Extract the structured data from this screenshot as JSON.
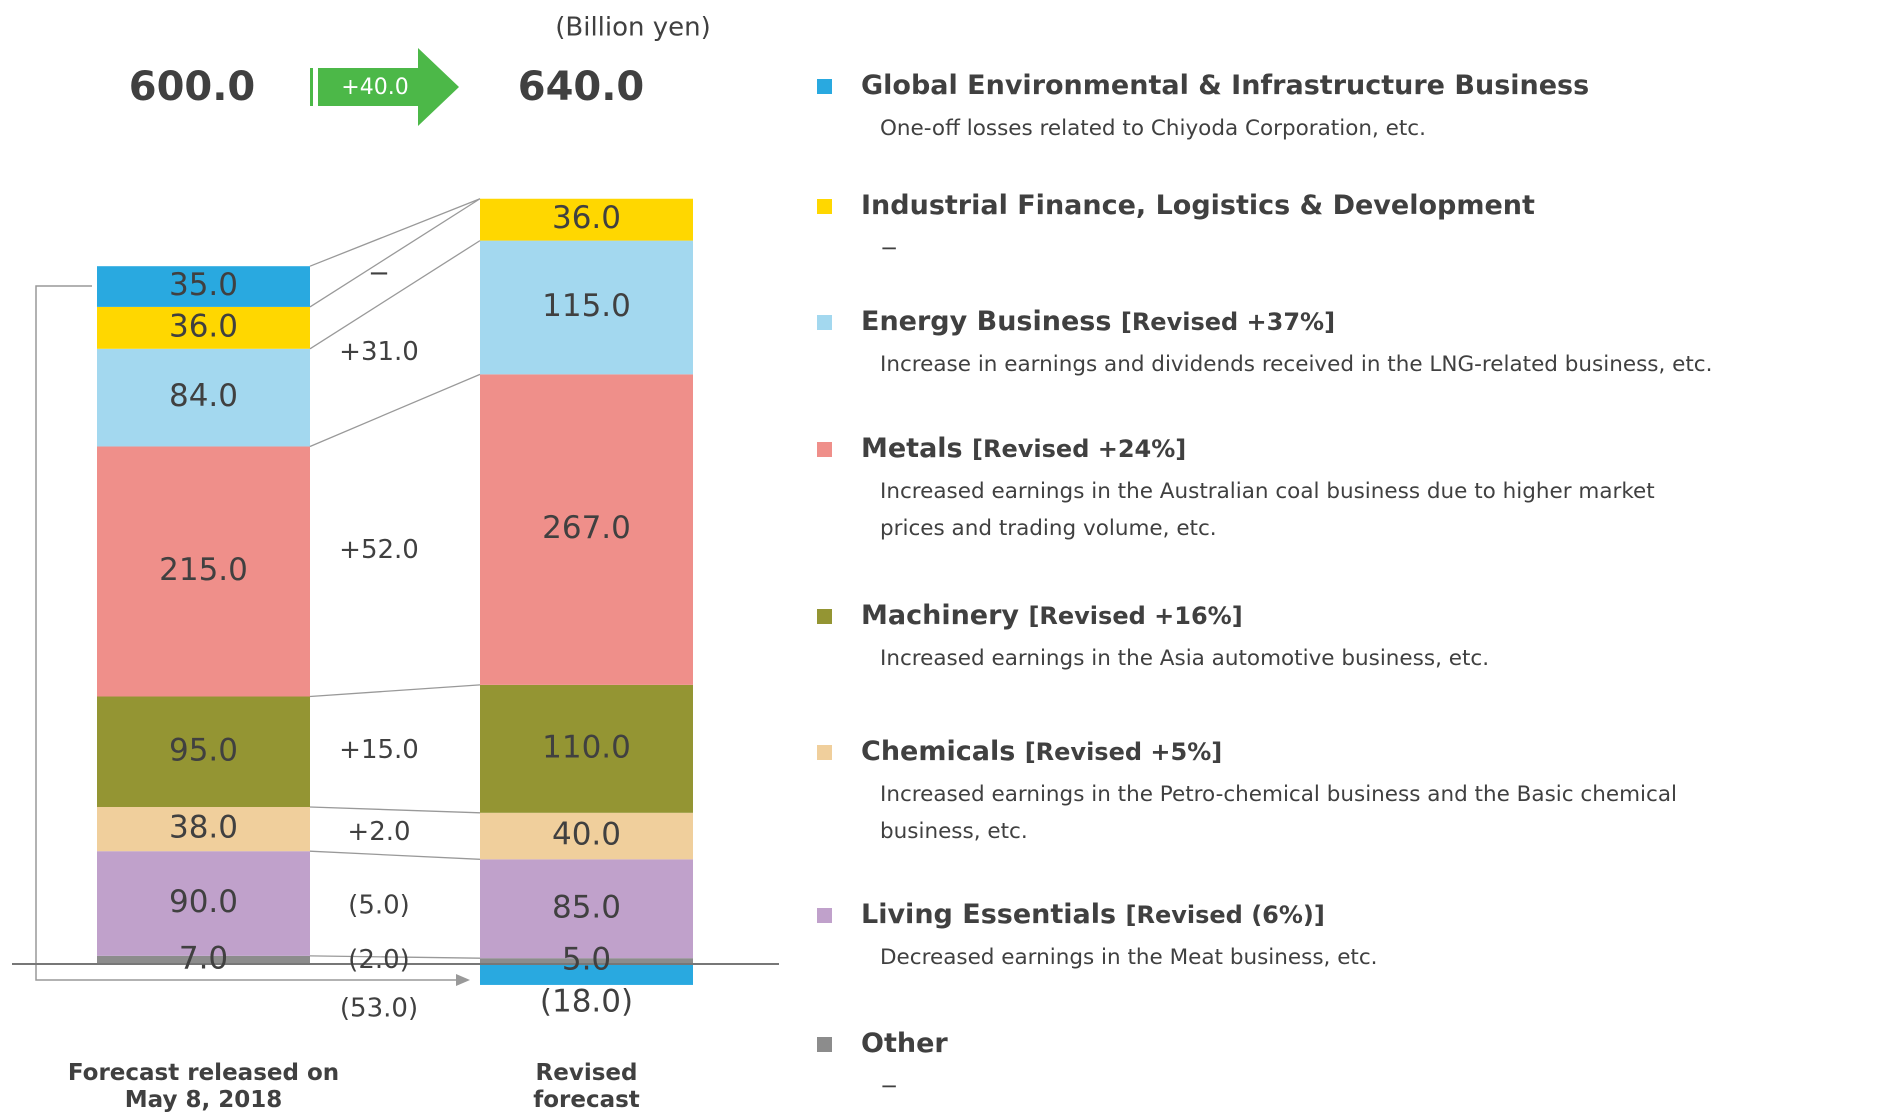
{
  "chart_data": {
    "type": "bar",
    "stacked": true,
    "unit_label": "(Billion yen)",
    "categories": [
      "Forecast released on May 8, 2018",
      "Revised forecast"
    ],
    "totals": [
      600.0,
      640.0
    ],
    "totals_labels": [
      "600.0",
      "640.0"
    ],
    "total_change": 40.0,
    "total_change_label": "+40.0",
    "series": [
      {
        "name": "Other",
        "color": "#8c8c8c",
        "values": [
          7.0,
          5.0
        ],
        "value_labels": [
          "7.0",
          "5.0"
        ],
        "change": -2.0,
        "change_label": "(2.0)",
        "note": "",
        "description": [
          "−"
        ]
      },
      {
        "name": "Living Essentials",
        "color": "#c0a1cb",
        "values": [
          90.0,
          85.0
        ],
        "value_labels": [
          "90.0",
          "85.0"
        ],
        "change": -5.0,
        "change_label": "(5.0)",
        "note": "[Revised (6%)]",
        "description": [
          "Decreased earnings in the Meat business, etc."
        ]
      },
      {
        "name": "Chemicals",
        "color": "#f0cf9c",
        "values": [
          38.0,
          40.0
        ],
        "value_labels": [
          "38.0",
          "40.0"
        ],
        "change": 2.0,
        "change_label": "+2.0",
        "note": "[Revised +5%]",
        "description": [
          "Increased earnings in the Petro-chemical business and the Basic chemical",
          "business, etc."
        ]
      },
      {
        "name": "Machinery",
        "color": "#949533",
        "values": [
          95.0,
          110.0
        ],
        "value_labels": [
          "95.0",
          "110.0"
        ],
        "change": 15.0,
        "change_label": "+15.0",
        "note": "[Revised +16%]",
        "description": [
          "Increased earnings in the Asia automotive business, etc."
        ]
      },
      {
        "name": "Metals",
        "color": "#ef8f8a",
        "values": [
          215.0,
          267.0
        ],
        "value_labels": [
          "215.0",
          "267.0"
        ],
        "change": 52.0,
        "change_label": "+52.0",
        "note": "[Revised +24%]",
        "description": [
          "Increased earnings in the Australian coal business due to higher market",
          "prices and trading volume, etc."
        ]
      },
      {
        "name": "Energy Business",
        "color": "#a3d8ef",
        "values": [
          84.0,
          115.0
        ],
        "value_labels": [
          "84.0",
          "115.0"
        ],
        "change": 31.0,
        "change_label": "+31.0",
        "note": "[Revised +37%]",
        "description": [
          "Increase in earnings and dividends received in the LNG-related business, etc."
        ]
      },
      {
        "name": "Industrial Finance, Logistics & Development",
        "color": "#ffd700",
        "values": [
          36.0,
          36.0
        ],
        "value_labels": [
          "36.0",
          "36.0"
        ],
        "change": 0,
        "change_label": "−",
        "note": "",
        "description": [
          "−"
        ]
      },
      {
        "name": "Global Environmental & Infrastructure Business",
        "color": "#29a9e0",
        "values": [
          35.0,
          -18.0
        ],
        "value_labels": [
          "35.0",
          "(18.0)"
        ],
        "change": -53.0,
        "change_label": "(53.0)",
        "note": "",
        "description": [
          "One-off losses related to Chiyoda Corporation, etc."
        ]
      }
    ]
  }
}
